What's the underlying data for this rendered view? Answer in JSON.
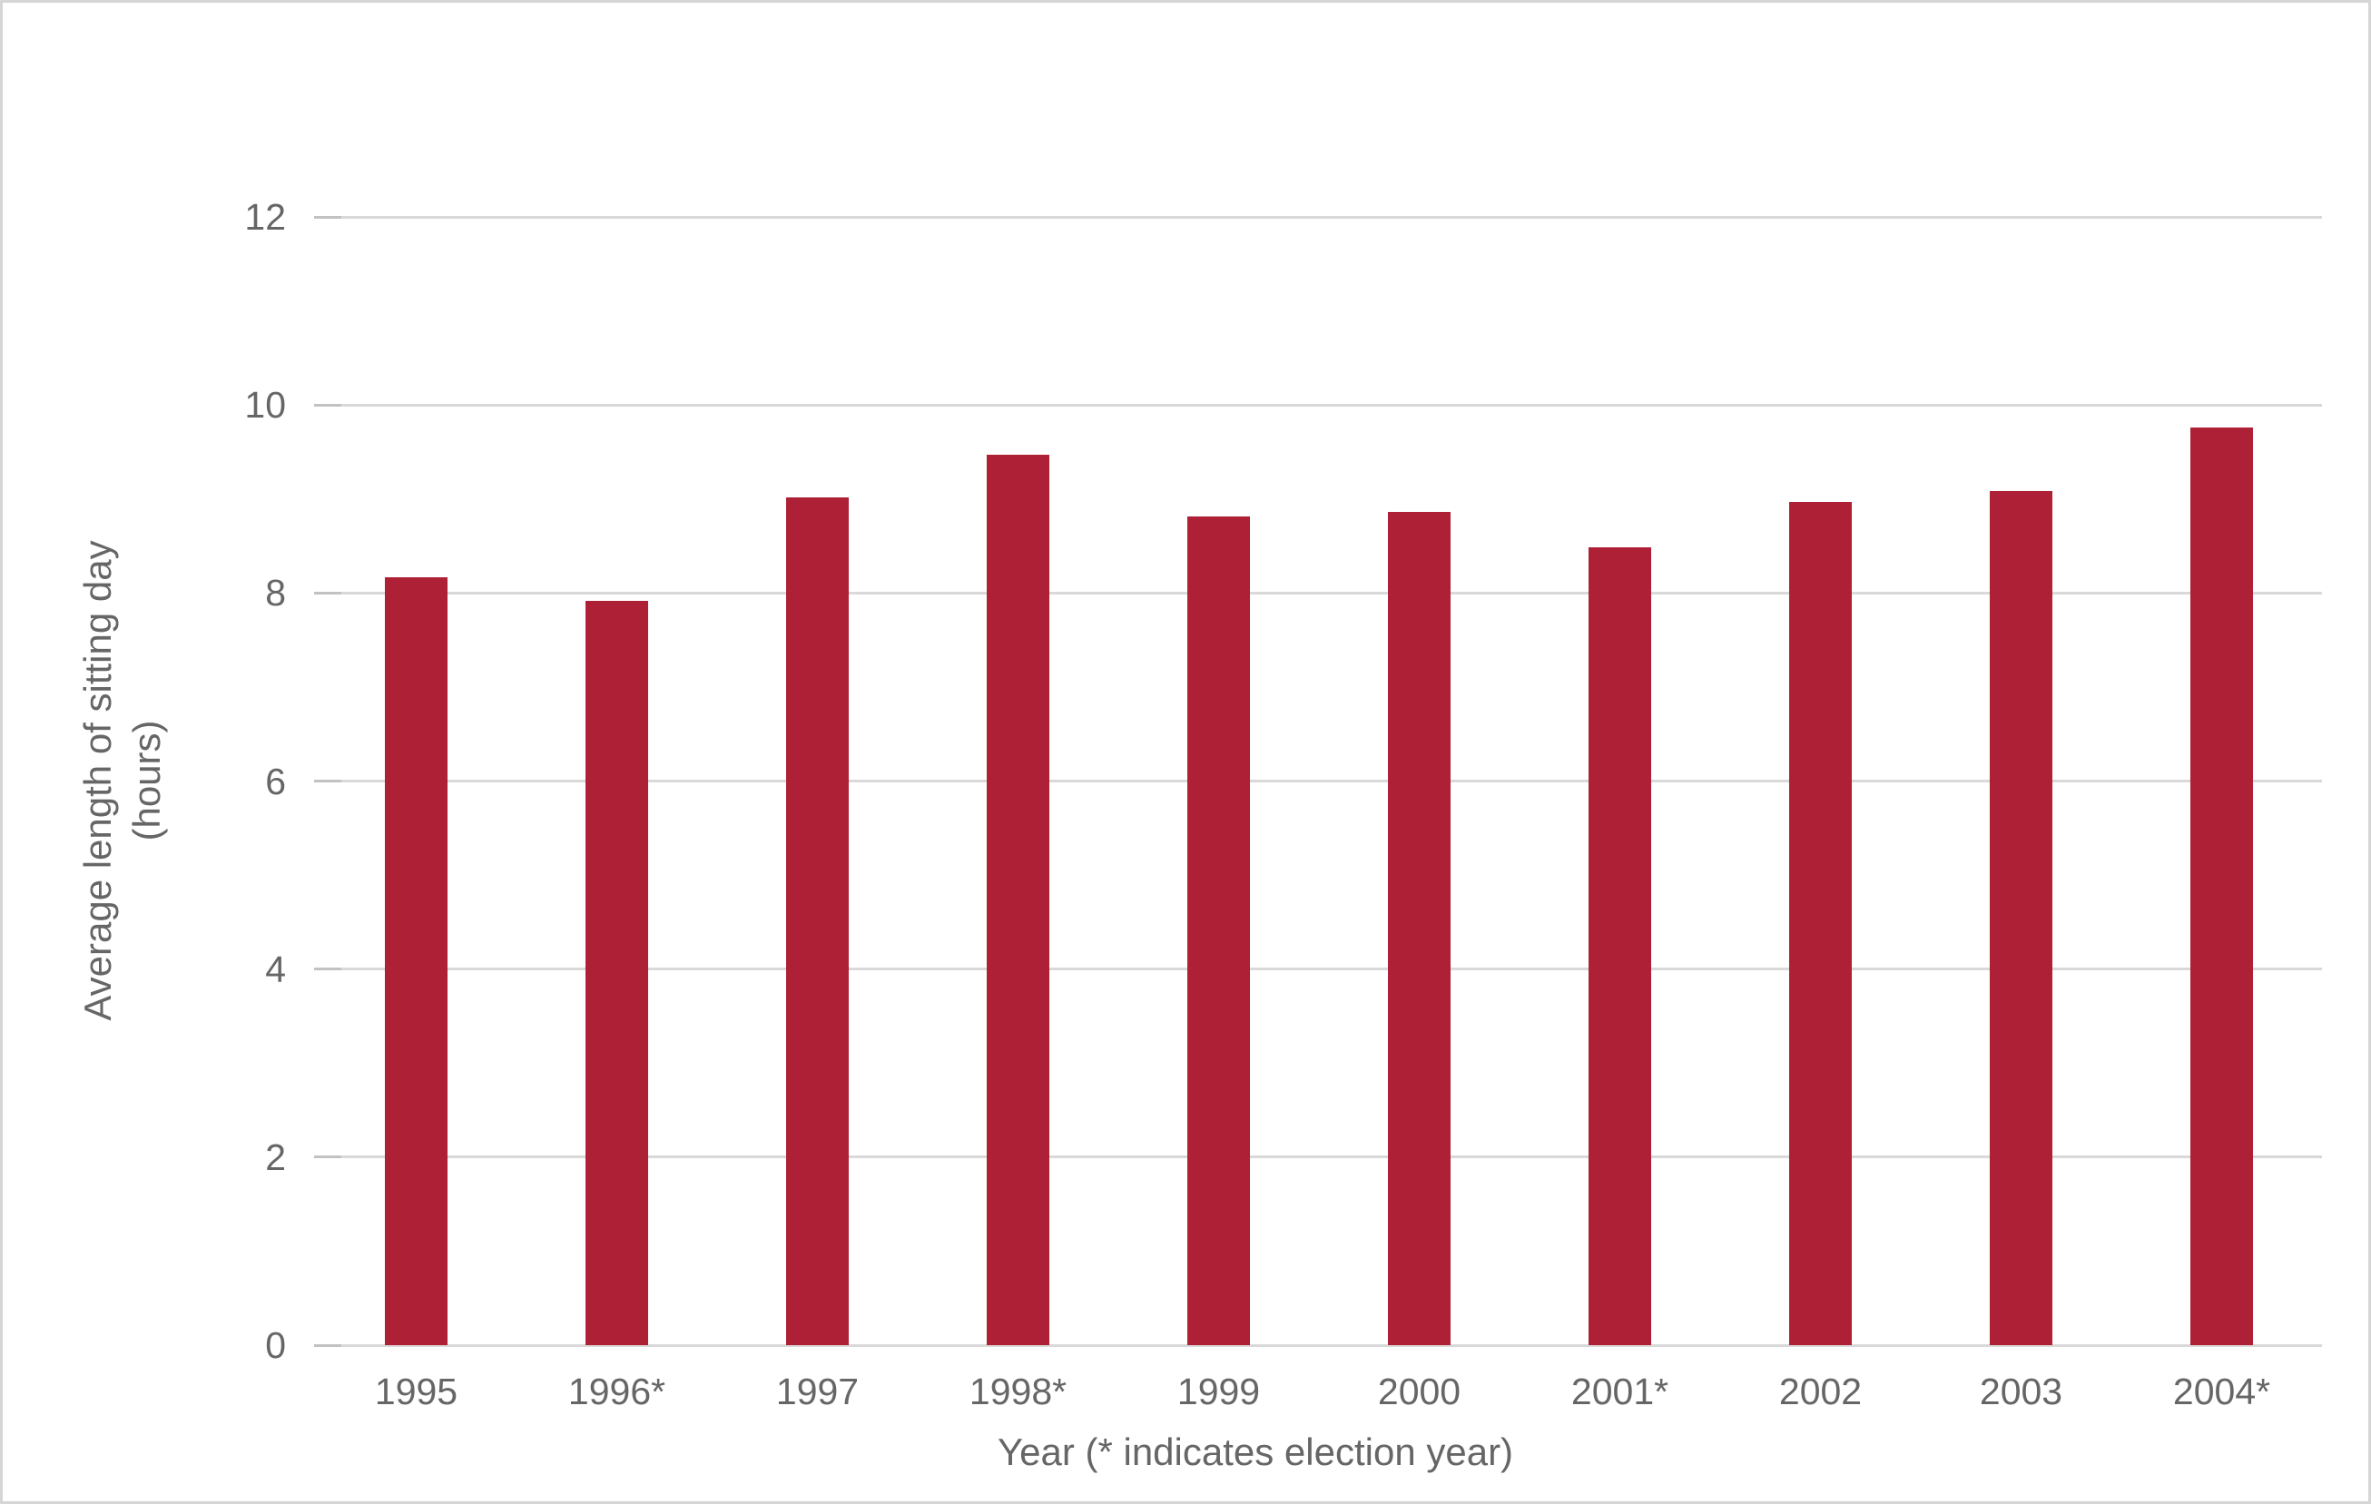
{
  "chart_data": {
    "type": "bar",
    "title": "",
    "categories": [
      "1995",
      "1996*",
      "1997",
      "1998*",
      "1999",
      "2000",
      "2001*",
      "2002",
      "2003",
      "2004*"
    ],
    "values": [
      8.17,
      7.92,
      9.02,
      9.47,
      8.81,
      8.86,
      8.49,
      8.97,
      9.08,
      9.76
    ],
    "election_years": [
      "1996*",
      "1998*",
      "2001*",
      "2004*"
    ],
    "xlabel": "Year (* indicates election year)",
    "ylabel": "Average length of sitting day (hours)",
    "ylabel_lines": [
      "Average length of sitting day",
      "(hours)"
    ],
    "ylim": [
      0,
      12
    ],
    "yticks": [
      0,
      2,
      4,
      6,
      8,
      10,
      12
    ],
    "grid": "horizontal",
    "legend": "none",
    "colors": {
      "bar": "#AE2035",
      "gridline": "#D9D9D9",
      "tickmark": "#C2C2C2",
      "text": "#666666",
      "frame_border": "#D6D6D6",
      "background": "#FFFFFF"
    }
  }
}
